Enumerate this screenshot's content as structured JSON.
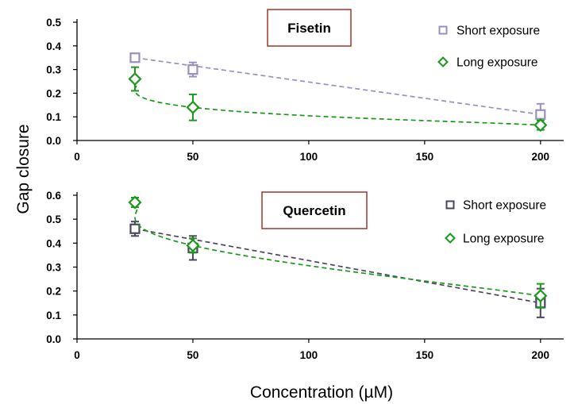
{
  "figure": {
    "ylabel": "Gap closure",
    "xlabel": "Concentration (µM)"
  },
  "colors": {
    "short_fisetin": "#9a8fbf",
    "short_quercetin": "#4a4562",
    "long": "#1a9a1a",
    "title_box": "#a8403a"
  },
  "chart_data": [
    {
      "type": "line",
      "title": "Fisetin",
      "x": [
        25,
        50,
        200
      ],
      "xlim": [
        0,
        210
      ],
      "xticks": [
        0,
        50,
        100,
        150,
        200
      ],
      "xtick_labels": [
        "0",
        "50",
        "100",
        "150",
        "200"
      ],
      "ylim": [
        0,
        0.5
      ],
      "yticks": [
        0,
        0.1,
        0.2,
        0.3,
        0.4,
        0.5
      ],
      "ytick_labels": [
        "0.0",
        "0.1",
        "0.2",
        "0.3",
        "0.4",
        "0.5"
      ],
      "grid": false,
      "legend_position": "top-right",
      "series": [
        {
          "name": "Short exposure",
          "marker": "square",
          "values": [
            0.35,
            0.3,
            0.11
          ],
          "errors": [
            0.015,
            0.03,
            0.045
          ],
          "trend": "linear"
        },
        {
          "name": "Long exposure",
          "marker": "diamond",
          "values": [
            0.26,
            0.14,
            0.065
          ],
          "errors": [
            0.05,
            0.055,
            0.02
          ],
          "trend": "smooth"
        }
      ]
    },
    {
      "type": "line",
      "title": "Quercetin",
      "x": [
        25,
        50,
        200
      ],
      "xlim": [
        0,
        210
      ],
      "xticks": [
        0,
        50,
        100,
        150,
        200
      ],
      "xtick_labels": [
        "0",
        "50",
        "100",
        "150",
        "200"
      ],
      "ylim": [
        0,
        0.6
      ],
      "yticks": [
        0,
        0.1,
        0.2,
        0.3,
        0.4,
        0.5,
        0.6
      ],
      "ytick_labels": [
        "0.0",
        "0.1",
        "0.2",
        "0.3",
        "0.4",
        "0.5",
        "0.6"
      ],
      "grid": false,
      "legend_position": "top-right",
      "series": [
        {
          "name": "Short exposure",
          "marker": "square",
          "values": [
            0.46,
            0.38,
            0.15
          ],
          "errors": [
            0.03,
            0.05,
            0.06
          ],
          "trend": "linear"
        },
        {
          "name": "Long exposure",
          "marker": "diamond",
          "values": [
            0.57,
            0.39,
            0.18
          ],
          "errors": [
            0.02,
            0.03,
            0.05
          ],
          "trend": "smooth"
        }
      ]
    }
  ]
}
